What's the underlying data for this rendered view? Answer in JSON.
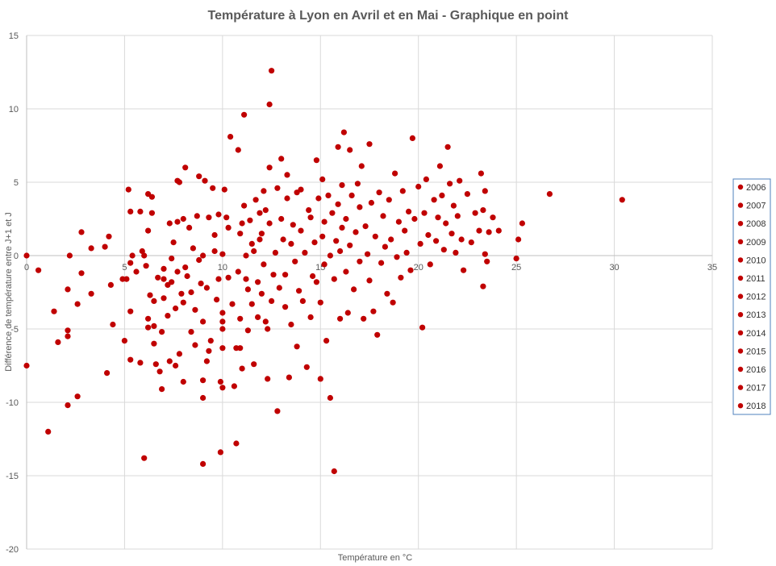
{
  "chart_data": {
    "type": "scatter",
    "title": "Température à Lyon en Avril et en Mai - Graphique en point",
    "xlabel": "Température  en °C",
    "ylabel": "Différence de température entre J+1 et J",
    "xlim": [
      0,
      35
    ],
    "ylim": [
      -20,
      15
    ],
    "x_ticks": [
      "0",
      "5",
      "10",
      "15",
      "20",
      "25",
      "30",
      "35"
    ],
    "y_ticks": [
      "15",
      "10",
      "5",
      "0",
      "-5",
      "-10",
      "-15",
      "-20"
    ],
    "grid": true,
    "legend_position": "right",
    "marker_color": "#c00000",
    "legend": [
      "2006",
      "2007",
      "2008",
      "2009",
      "2010",
      "2011",
      "2012",
      "2013",
      "2014",
      "2015",
      "2016",
      "2017",
      "2018"
    ],
    "points": [
      [
        0,
        0
      ],
      [
        0,
        -7.5
      ],
      [
        0.6,
        -1
      ],
      [
        1.1,
        -12
      ],
      [
        1.4,
        -3.8
      ],
      [
        1.6,
        -5.9
      ],
      [
        2.1,
        -10.2
      ],
      [
        2.1,
        -5.5
      ],
      [
        2.1,
        -5.1
      ],
      [
        2.1,
        -2.3
      ],
      [
        2.2,
        0
      ],
      [
        2.6,
        -9.6
      ],
      [
        2.6,
        -3.3
      ],
      [
        2.8,
        -1.2
      ],
      [
        2.8,
        1.6
      ],
      [
        3.3,
        0.5
      ],
      [
        3.3,
        -2.6
      ],
      [
        4,
        0.6
      ],
      [
        4.1,
        -8
      ],
      [
        4.2,
        1.3
      ],
      [
        4.3,
        -2
      ],
      [
        4.4,
        -4.7
      ],
      [
        4.9,
        -1.6
      ],
      [
        5,
        -5.8
      ],
      [
        5.1,
        -1.6
      ],
      [
        5.2,
        4.5
      ],
      [
        5.3,
        -3.8
      ],
      [
        5.3,
        -7.1
      ],
      [
        5.3,
        -0.5
      ],
      [
        5.3,
        3
      ],
      [
        5.4,
        0
      ],
      [
        5.6,
        -1.1
      ],
      [
        5.8,
        -7.3
      ],
      [
        5.8,
        3
      ],
      [
        5.9,
        0.3
      ],
      [
        6,
        -13.8
      ],
      [
        6,
        0
      ],
      [
        6.1,
        -0.7
      ],
      [
        6.2,
        -4.3
      ],
      [
        6.2,
        -4.9
      ],
      [
        6.2,
        1.7
      ],
      [
        6.2,
        4.2
      ],
      [
        6.3,
        -2.7
      ],
      [
        6.4,
        4
      ],
      [
        6.4,
        2.9
      ],
      [
        6.5,
        -3.1
      ],
      [
        6.5,
        -4.8
      ],
      [
        6.5,
        -6
      ],
      [
        6.6,
        -7.4
      ],
      [
        6.7,
        -1.5
      ],
      [
        6.8,
        -7.9
      ],
      [
        6.9,
        -9.1
      ],
      [
        6.9,
        -5.2
      ],
      [
        7,
        -2.9
      ],
      [
        7,
        -1.6
      ],
      [
        7,
        -0.9
      ],
      [
        7.2,
        -4.1
      ],
      [
        7.2,
        -2
      ],
      [
        7.3,
        -7.2
      ],
      [
        7.3,
        2.2
      ],
      [
        7.4,
        -0.2
      ],
      [
        7.4,
        -1.8
      ],
      [
        7.5,
        0.9
      ],
      [
        7.6,
        -7.5
      ],
      [
        7.6,
        -3.6
      ],
      [
        7.7,
        -1.1
      ],
      [
        7.7,
        2.3
      ],
      [
        7.7,
        5.1
      ],
      [
        7.8,
        5
      ],
      [
        7.8,
        -6.7
      ],
      [
        7.9,
        -2.6
      ],
      [
        8,
        -8.6
      ],
      [
        8,
        -3.2
      ],
      [
        8,
        2.5
      ],
      [
        8.1,
        6
      ],
      [
        8.1,
        -0.8
      ],
      [
        8.2,
        -1.4
      ],
      [
        8.3,
        1.9
      ],
      [
        8.4,
        -5.2
      ],
      [
        8.4,
        -2.5
      ],
      [
        8.5,
        0.5
      ],
      [
        8.6,
        -6.1
      ],
      [
        8.6,
        -3.7
      ],
      [
        8.7,
        2.7
      ],
      [
        8.8,
        5.4
      ],
      [
        8.8,
        -0.3
      ],
      [
        8.9,
        -1.9
      ],
      [
        9,
        -14.2
      ],
      [
        9,
        -9.7
      ],
      [
        9,
        -8.5
      ],
      [
        9,
        -4.5
      ],
      [
        9,
        0
      ],
      [
        9.1,
        5.1
      ],
      [
        9.2,
        -7.2
      ],
      [
        9.2,
        -2.2
      ],
      [
        9.3,
        -6.5
      ],
      [
        9.3,
        2.6
      ],
      [
        9.4,
        -5.8
      ],
      [
        9.5,
        4.6
      ],
      [
        9.6,
        1.4
      ],
      [
        9.6,
        0.3
      ],
      [
        9.7,
        -3
      ],
      [
        9.8,
        -1.6
      ],
      [
        9.8,
        2.8
      ],
      [
        9.9,
        -8.6
      ],
      [
        9.9,
        -13.4
      ],
      [
        10,
        -6.3
      ],
      [
        10,
        -5
      ],
      [
        10,
        -4.5
      ],
      [
        10,
        -3.9
      ],
      [
        10,
        -9
      ],
      [
        10,
        0.1
      ],
      [
        10.1,
        4.5
      ],
      [
        10.2,
        2.6
      ],
      [
        10.3,
        -1.5
      ],
      [
        10.3,
        1.9
      ],
      [
        10.4,
        8.1
      ],
      [
        10.5,
        -3.3
      ],
      [
        10.6,
        -8.9
      ],
      [
        10.7,
        -6.3
      ],
      [
        10.7,
        -12.8
      ],
      [
        10.8,
        7.2
      ],
      [
        10.8,
        -1.1
      ],
      [
        10.9,
        -6.3
      ],
      [
        10.9,
        -4.3
      ],
      [
        10.9,
        1.5
      ],
      [
        11,
        -7.7
      ],
      [
        11,
        2.2
      ],
      [
        11.1,
        9.6
      ],
      [
        11.1,
        3.4
      ],
      [
        11.2,
        -1.6
      ],
      [
        11.2,
        0
      ],
      [
        11.3,
        -5.1
      ],
      [
        11.3,
        -2.3
      ],
      [
        11.4,
        2.4
      ],
      [
        11.5,
        0.8
      ],
      [
        11.5,
        -3.3
      ],
      [
        11.6,
        -7.4
      ],
      [
        11.6,
        0.3
      ],
      [
        11.7,
        3.8
      ],
      [
        11.8,
        -1.8
      ],
      [
        11.8,
        -4.2
      ],
      [
        11.9,
        1.1
      ],
      [
        11.9,
        2.9
      ],
      [
        12,
        1.5
      ],
      [
        12,
        -2.6
      ],
      [
        12.1,
        -0.6
      ],
      [
        12.1,
        4.4
      ],
      [
        12.2,
        3.1
      ],
      [
        12.2,
        -4.5
      ],
      [
        12.3,
        -8.4
      ],
      [
        12.3,
        -5
      ],
      [
        12.4,
        10.3
      ],
      [
        12.4,
        2.2
      ],
      [
        12.4,
        6
      ],
      [
        12.5,
        12.6
      ],
      [
        12.5,
        -3.1
      ],
      [
        12.6,
        -1.3
      ],
      [
        12.7,
        0.2
      ],
      [
        12.8,
        4.6
      ],
      [
        12.8,
        -10.6
      ],
      [
        12.9,
        -2.2
      ],
      [
        13,
        2.5
      ],
      [
        13,
        6.6
      ],
      [
        13.1,
        1.1
      ],
      [
        13.2,
        -3.5
      ],
      [
        13.2,
        -1.3
      ],
      [
        13.3,
        5.5
      ],
      [
        13.3,
        3.9
      ],
      [
        13.4,
        -8.3
      ],
      [
        13.5,
        0.8
      ],
      [
        13.5,
        -4.7
      ],
      [
        13.6,
        2.1
      ],
      [
        13.7,
        -0.4
      ],
      [
        13.8,
        4.3
      ],
      [
        13.8,
        -6.2
      ],
      [
        13.9,
        -2.4
      ],
      [
        14,
        1.7
      ],
      [
        14,
        4.5
      ],
      [
        14.1,
        -3.1
      ],
      [
        14.2,
        0.2
      ],
      [
        14.3,
        -7.6
      ],
      [
        14.4,
        3.1
      ],
      [
        14.5,
        -4.2
      ],
      [
        14.5,
        2.6
      ],
      [
        14.6,
        -1.4
      ],
      [
        14.7,
        0.9
      ],
      [
        14.8,
        6.5
      ],
      [
        14.8,
        -1.8
      ],
      [
        14.9,
        3.9
      ],
      [
        15,
        -8.4
      ],
      [
        15,
        -3.2
      ],
      [
        15.1,
        1.3
      ],
      [
        15.1,
        5.2
      ],
      [
        15.2,
        -0.6
      ],
      [
        15.2,
        2.3
      ],
      [
        15.3,
        -5.8
      ],
      [
        15.4,
        4.1
      ],
      [
        15.5,
        -9.7
      ],
      [
        15.5,
        0
      ],
      [
        15.6,
        2.9
      ],
      [
        15.7,
        -14.7
      ],
      [
        15.7,
        -1.6
      ],
      [
        15.8,
        1
      ],
      [
        15.9,
        7.4
      ],
      [
        15.9,
        3.5
      ],
      [
        16,
        -4.3
      ],
      [
        16,
        0.3
      ],
      [
        16.1,
        4.8
      ],
      [
        16.1,
        1.9
      ],
      [
        16.2,
        8.4
      ],
      [
        16.3,
        -1.1
      ],
      [
        16.3,
        2.5
      ],
      [
        16.4,
        -3.9
      ],
      [
        16.5,
        7.2
      ],
      [
        16.5,
        0.7
      ],
      [
        16.6,
        4.1
      ],
      [
        16.7,
        -2.3
      ],
      [
        16.8,
        1.6
      ],
      [
        16.9,
        4.9
      ],
      [
        17,
        -0.4
      ],
      [
        17,
        3.3
      ],
      [
        17.1,
        6.1
      ],
      [
        17.2,
        -4.3
      ],
      [
        17.3,
        2
      ],
      [
        17.4,
        0.1
      ],
      [
        17.5,
        7.6
      ],
      [
        17.5,
        -1.7
      ],
      [
        17.6,
        3.6
      ],
      [
        17.7,
        -3.8
      ],
      [
        17.8,
        1.3
      ],
      [
        17.9,
        -5.4
      ],
      [
        18,
        4.3
      ],
      [
        18.1,
        -0.5
      ],
      [
        18.2,
        2.7
      ],
      [
        18.3,
        0.6
      ],
      [
        18.4,
        -2.6
      ],
      [
        18.5,
        3.8
      ],
      [
        18.6,
        1.1
      ],
      [
        18.7,
        -3.2
      ],
      [
        18.8,
        5.6
      ],
      [
        18.9,
        -0.1
      ],
      [
        19,
        2.3
      ],
      [
        19.1,
        -1.5
      ],
      [
        19.2,
        4.4
      ],
      [
        19.3,
        1.7
      ],
      [
        19.4,
        0.2
      ],
      [
        19.5,
        3
      ],
      [
        19.6,
        -1
      ],
      [
        19.7,
        8
      ],
      [
        19.8,
        2.5
      ],
      [
        20,
        4.7
      ],
      [
        20.1,
        0.8
      ],
      [
        20.2,
        -4.9
      ],
      [
        20.3,
        2.9
      ],
      [
        20.4,
        5.2
      ],
      [
        20.5,
        1.4
      ],
      [
        20.6,
        -0.6
      ],
      [
        20.8,
        3.8
      ],
      [
        20.9,
        1
      ],
      [
        21,
        2.6
      ],
      [
        21.1,
        6.1
      ],
      [
        21.2,
        4.1
      ],
      [
        21.3,
        0.4
      ],
      [
        21.4,
        2.2
      ],
      [
        21.5,
        7.4
      ],
      [
        21.6,
        4.9
      ],
      [
        21.7,
        1.5
      ],
      [
        21.8,
        3.4
      ],
      [
        21.9,
        0.2
      ],
      [
        22,
        2.7
      ],
      [
        22.1,
        5.1
      ],
      [
        22.2,
        1.1
      ],
      [
        22.3,
        -1
      ],
      [
        22.5,
        4.2
      ],
      [
        22.7,
        0.9
      ],
      [
        22.9,
        2.9
      ],
      [
        23.1,
        1.7
      ],
      [
        23.2,
        5.6
      ],
      [
        23.3,
        -2.1
      ],
      [
        23.3,
        3.1
      ],
      [
        23.4,
        0.1
      ],
      [
        23.4,
        4.4
      ],
      [
        23.5,
        -0.4
      ],
      [
        23.6,
        1.6
      ],
      [
        23.8,
        2.6
      ],
      [
        24.1,
        1.7
      ],
      [
        25,
        -0.2
      ],
      [
        25.1,
        1.1
      ],
      [
        25.3,
        2.2
      ],
      [
        26.7,
        4.2
      ],
      [
        30.4,
        3.8
      ]
    ]
  }
}
